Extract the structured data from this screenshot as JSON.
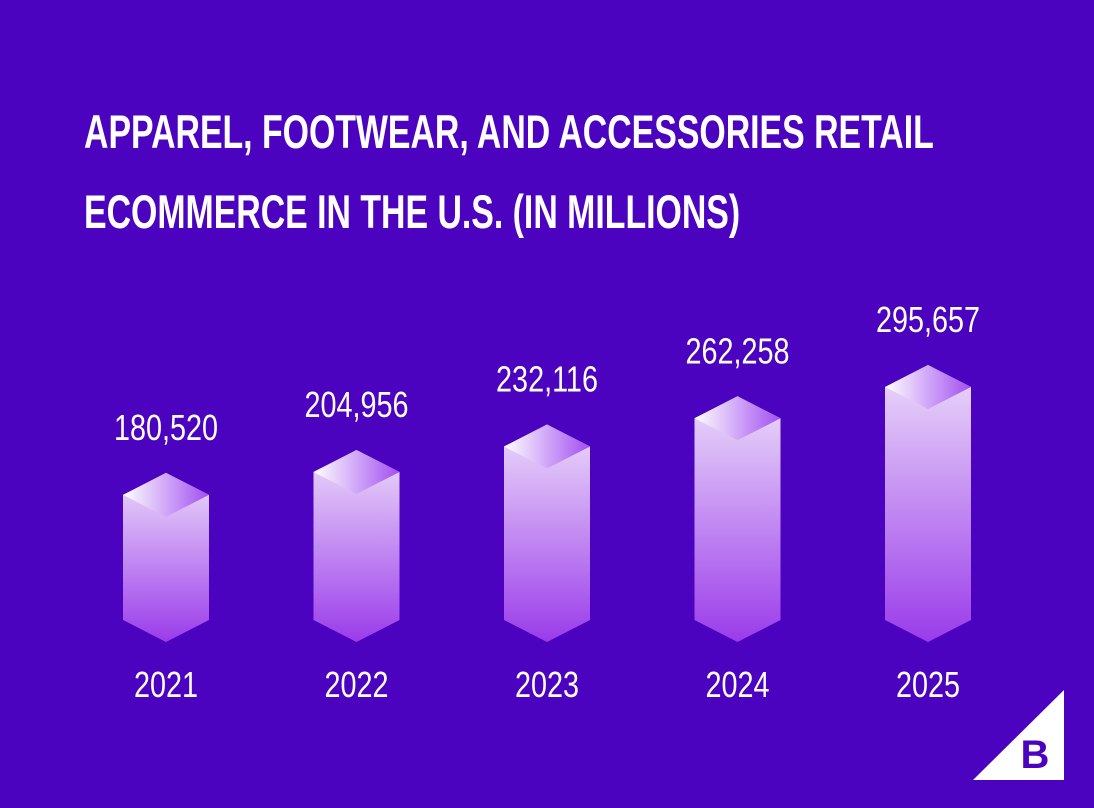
{
  "chart_data": {
    "type": "bar",
    "title": "APPAREL, FOOTWEAR, AND ACCESSORIES RETAIL ECOMMERCE IN THE U.S. (IN MILLIONS)",
    "categories": [
      "2021",
      "2022",
      "2023",
      "2024",
      "2025"
    ],
    "values": [
      180520,
      204956,
      232116,
      262258,
      295657
    ],
    "value_labels": [
      "180,520",
      "204,956",
      "232,116",
      "262,258",
      "295,657"
    ],
    "logo": "B"
  }
}
